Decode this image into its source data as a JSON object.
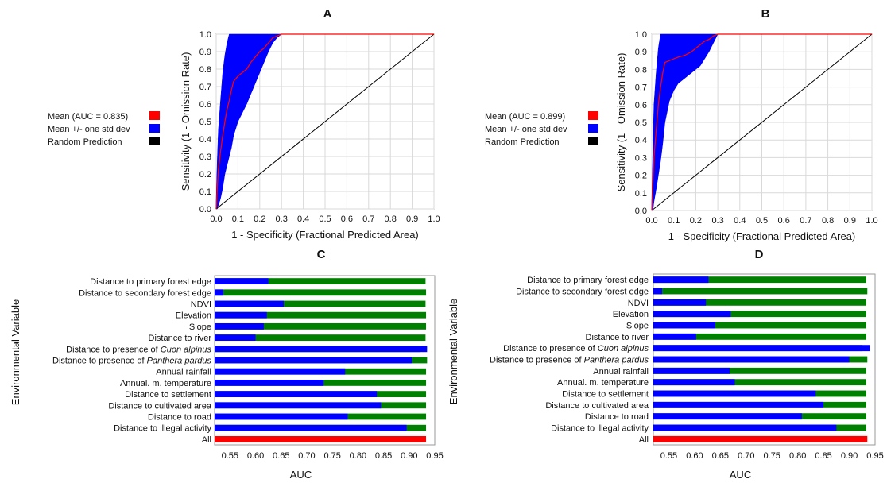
{
  "chart_data": [
    {
      "id": "A",
      "type": "line",
      "title": "A",
      "xlabel": "1 - Specificity (Fractional Predicted Area)",
      "ylabel": "Sensitivity (1 - Omission Rate)",
      "xlim": [
        0,
        1
      ],
      "ylim": [
        0,
        1
      ],
      "xticks": [
        "0.0",
        "0.1",
        "0.2",
        "0.3",
        "0.4",
        "0.5",
        "0.6",
        "0.7",
        "0.8",
        "0.9",
        "1.0"
      ],
      "yticks": [
        "0.0",
        "0.1",
        "0.2",
        "0.3",
        "0.4",
        "0.5",
        "0.6",
        "0.7",
        "0.8",
        "0.9",
        "1.0"
      ],
      "grid": true,
      "legend_position": "left",
      "legend": [
        {
          "label": "Mean (AUC = 0.835)",
          "color": "#ff0000"
        },
        {
          "label": "Mean +/- one std dev",
          "color": "#0000ff"
        },
        {
          "label": "Random Prediction",
          "color": "#000000"
        }
      ],
      "series": [
        {
          "name": "Mean (AUC = 0.835)",
          "color": "#ff0000",
          "x": [
            0,
            0.005,
            0.01,
            0.02,
            0.03,
            0.04,
            0.05,
            0.06,
            0.07,
            0.08,
            0.1,
            0.12,
            0.14,
            0.16,
            0.18,
            0.2,
            0.22,
            0.24,
            0.26,
            0.28,
            0.3,
            0.5,
            0.7,
            1.0
          ],
          "y": [
            0,
            0.12,
            0.22,
            0.33,
            0.42,
            0.5,
            0.57,
            0.62,
            0.68,
            0.73,
            0.76,
            0.78,
            0.8,
            0.84,
            0.87,
            0.9,
            0.92,
            0.95,
            0.98,
            0.99,
            1.0,
            1.0,
            1.0,
            1.0
          ]
        },
        {
          "name": "Mean +/- one std dev",
          "color": "#0000ff",
          "x": [
            0,
            0.005,
            0.01,
            0.02,
            0.03,
            0.04,
            0.05,
            0.06,
            0.07,
            0.08,
            0.1,
            0.12,
            0.14,
            0.16,
            0.18,
            0.2,
            0.22,
            0.24,
            0.26,
            0.28,
            0.3
          ],
          "upper": [
            0.05,
            0.28,
            0.45,
            0.62,
            0.78,
            0.88,
            0.95,
            1.0,
            1.0,
            1.0,
            1.0,
            1.0,
            1.0,
            1.0,
            1.0,
            1.0,
            1.0,
            1.0,
            1.0,
            1.0,
            1.0
          ],
          "lower": [
            0,
            0,
            0.02,
            0.06,
            0.12,
            0.2,
            0.25,
            0.3,
            0.35,
            0.42,
            0.5,
            0.55,
            0.6,
            0.66,
            0.72,
            0.78,
            0.84,
            0.9,
            0.95,
            0.98,
            1.0
          ]
        },
        {
          "name": "Random Prediction",
          "color": "#000000",
          "x": [
            0,
            1
          ],
          "y": [
            0,
            1
          ]
        }
      ]
    },
    {
      "id": "B",
      "type": "line",
      "title": "B",
      "xlabel": "1 - Specificity (Fractional Predicted Area)",
      "ylabel": "Sensitivity (1 - Omission Rate)",
      "xlim": [
        0,
        1
      ],
      "ylim": [
        0,
        1
      ],
      "xticks": [
        "0.0",
        "0.1",
        "0.2",
        "0.3",
        "0.4",
        "0.5",
        "0.6",
        "0.7",
        "0.8",
        "0.9",
        "1.0"
      ],
      "yticks": [
        "0.0",
        "0.1",
        "0.2",
        "0.3",
        "0.4",
        "0.5",
        "0.6",
        "0.7",
        "0.8",
        "0.9",
        "1.0"
      ],
      "grid": true,
      "legend_position": "left",
      "legend": [
        {
          "label": "Mean (AUC = 0.899)",
          "color": "#ff0000"
        },
        {
          "label": "Mean +/- one std dev",
          "color": "#0000ff"
        },
        {
          "label": "Random Prediction",
          "color": "#000000"
        }
      ],
      "series": [
        {
          "name": "Mean (AUC = 0.899)",
          "color": "#ff0000",
          "x": [
            0,
            0.005,
            0.01,
            0.02,
            0.03,
            0.04,
            0.05,
            0.06,
            0.08,
            0.1,
            0.12,
            0.15,
            0.18,
            0.2,
            0.22,
            0.24,
            0.26,
            0.28,
            0.3,
            0.5,
            0.7,
            1.0
          ],
          "y": [
            0,
            0.15,
            0.3,
            0.45,
            0.6,
            0.7,
            0.78,
            0.84,
            0.85,
            0.86,
            0.87,
            0.88,
            0.9,
            0.92,
            0.94,
            0.96,
            0.97,
            0.99,
            1.0,
            1.0,
            1.0,
            1.0
          ]
        },
        {
          "name": "Mean +/- one std dev",
          "color": "#0000ff",
          "x": [
            0,
            0.005,
            0.01,
            0.02,
            0.03,
            0.04,
            0.05,
            0.06,
            0.08,
            0.1,
            0.12,
            0.15,
            0.18,
            0.2,
            0.22,
            0.24,
            0.26,
            0.28,
            0.3
          ],
          "upper": [
            0.05,
            0.35,
            0.6,
            0.78,
            0.92,
            1.0,
            1.0,
            1.0,
            1.0,
            1.0,
            1.0,
            1.0,
            1.0,
            1.0,
            1.0,
            1.0,
            1.0,
            1.0,
            1.0
          ],
          "lower": [
            0,
            0,
            0.05,
            0.12,
            0.2,
            0.28,
            0.38,
            0.5,
            0.62,
            0.68,
            0.72,
            0.75,
            0.78,
            0.8,
            0.82,
            0.86,
            0.9,
            0.95,
            1.0
          ]
        },
        {
          "name": "Random Prediction",
          "color": "#000000",
          "x": [
            0,
            0.05,
            1
          ],
          "y": [
            0,
            0.05,
            1
          ]
        }
      ]
    },
    {
      "id": "C",
      "type": "bar",
      "orientation": "horizontal",
      "title": "C",
      "xlabel": "AUC",
      "ylabel": "Environmental Variable",
      "xlim": [
        0.52,
        0.95
      ],
      "xticks": [
        "0.55",
        "0.60",
        "0.65",
        "0.70",
        "0.75",
        "0.80",
        "0.85",
        "0.90",
        "0.95"
      ],
      "categories": [
        {
          "pre": "Distance to primary forest edge",
          "em": "",
          "post": ""
        },
        {
          "pre": "Distance to secondary forest edge",
          "em": "",
          "post": ""
        },
        {
          "pre": "NDVI",
          "em": "",
          "post": ""
        },
        {
          "pre": "Elevation",
          "em": "",
          "post": ""
        },
        {
          "pre": "Slope",
          "em": "",
          "post": ""
        },
        {
          "pre": "Distance to river",
          "em": "",
          "post": ""
        },
        {
          "pre": "Distance to presence of ",
          "em": "Cuon alpinus",
          "post": ""
        },
        {
          "pre": "Distance to presence of ",
          "em": "Panthera pardus",
          "post": ""
        },
        {
          "pre": "Annual rainfall",
          "em": "",
          "post": ""
        },
        {
          "pre": "Annual. m. temperature",
          "em": "",
          "post": ""
        },
        {
          "pre": "Distance to settlement",
          "em": "",
          "post": ""
        },
        {
          "pre": "Distance to cultivated area",
          "em": "",
          "post": ""
        },
        {
          "pre": "Distance to road",
          "em": "",
          "post": ""
        },
        {
          "pre": "Distance to illegal activity",
          "em": "",
          "post": ""
        },
        {
          "pre": "All",
          "em": "",
          "post": ""
        }
      ],
      "series": [
        {
          "color": "#008000",
          "values": [
            0.932,
            0.933,
            0.932,
            0.933,
            0.933,
            0.932,
            0.922,
            0.935,
            0.933,
            0.933,
            0.933,
            0.933,
            0.933,
            0.933,
            null
          ]
        },
        {
          "color": "#0000ff",
          "values": [
            0.625,
            0.537,
            0.655,
            0.622,
            0.616,
            0.6,
            0.935,
            0.905,
            0.775,
            0.733,
            0.837,
            0.845,
            0.78,
            0.895,
            null
          ]
        },
        {
          "color": "#ff0000",
          "values": [
            null,
            null,
            null,
            null,
            null,
            null,
            null,
            null,
            null,
            null,
            null,
            null,
            null,
            null,
            0.933
          ]
        }
      ]
    },
    {
      "id": "D",
      "type": "bar",
      "orientation": "horizontal",
      "title": "D",
      "xlabel": "AUC",
      "ylabel": "Environmental Variable",
      "xlim": [
        0.52,
        0.95
      ],
      "xticks": [
        "0.55",
        "0.60",
        "0.65",
        "0.70",
        "0.75",
        "0.80",
        "0.85",
        "0.90",
        "0.95"
      ],
      "categories": [
        {
          "pre": "Distance to primary forest edge",
          "em": "",
          "post": ""
        },
        {
          "pre": "Distance to secondary forest edge",
          "em": "",
          "post": ""
        },
        {
          "pre": "NDVI",
          "em": "",
          "post": ""
        },
        {
          "pre": "Elevation",
          "em": "",
          "post": ""
        },
        {
          "pre": "Slope",
          "em": "",
          "post": ""
        },
        {
          "pre": "Distance to river",
          "em": "",
          "post": ""
        },
        {
          "pre": "Distance to presence of ",
          "em": "Cuon alpinus",
          "post": ""
        },
        {
          "pre": "Distance to presence of ",
          "em": "Panthera pardus",
          "post": ""
        },
        {
          "pre": "Annual rainfall",
          "em": "",
          "post": ""
        },
        {
          "pre": "Annual. m. temperature",
          "em": "",
          "post": ""
        },
        {
          "pre": "Distance to settlement",
          "em": "",
          "post": ""
        },
        {
          "pre": "Distance to cultivated area",
          "em": "",
          "post": ""
        },
        {
          "pre": "Distance to road",
          "em": "",
          "post": ""
        },
        {
          "pre": "Distance to illegal activity",
          "em": "",
          "post": ""
        },
        {
          "pre": "All",
          "em": "",
          "post": ""
        }
      ],
      "series": [
        {
          "color": "#008000",
          "values": [
            0.933,
            0.935,
            0.933,
            0.933,
            0.933,
            0.933,
            0.925,
            0.935,
            0.933,
            0.933,
            0.933,
            0.933,
            0.933,
            0.933,
            null
          ]
        },
        {
          "color": "#0000ff",
          "values": [
            0.627,
            0.537,
            0.622,
            0.67,
            0.64,
            0.603,
            0.94,
            0.9,
            0.668,
            0.678,
            0.835,
            0.85,
            0.808,
            0.875,
            null
          ]
        },
        {
          "color": "#ff0000",
          "values": [
            null,
            null,
            null,
            null,
            null,
            null,
            null,
            null,
            null,
            null,
            null,
            null,
            null,
            null,
            0.935
          ]
        }
      ]
    }
  ]
}
